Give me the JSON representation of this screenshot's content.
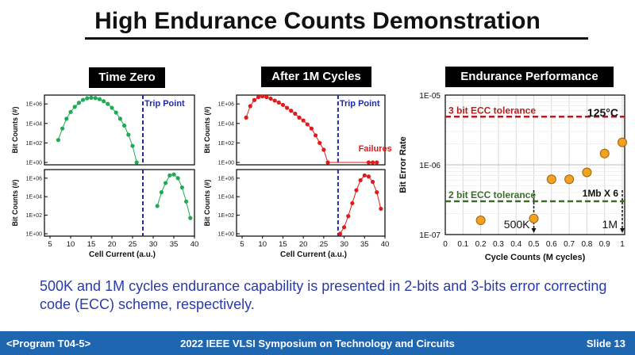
{
  "slide": {
    "title": "High Endurance Counts Demonstration",
    "caption": "500K and 1M cycles endurance capability is presented in 2-bits and 3-bits error correcting code (ECC) scheme, respectively.",
    "footer": {
      "program": "<Program T04-5>",
      "conference": "2022 IEEE VLSI Symposium on Technology and Circuits",
      "slide_number": "Slide 13"
    }
  },
  "colors": {
    "green": "#1faa55",
    "red": "#e01b1b",
    "orange": "#f2a21e",
    "navy": "#1f2ab0",
    "ecc3": "#b21e1e",
    "ecc2": "#3e6b2a",
    "footer": "#1f66b0",
    "caption": "#2a3aa8"
  },
  "chart_data": [
    {
      "type": "line",
      "title": "Time Zero",
      "subplot": "top",
      "xlabel": "",
      "ylabel": "Bit Counts (#)",
      "xlim": [
        5,
        40
      ],
      "yscale": "log",
      "y_tick_labels": [
        "1E+00",
        "1E+02",
        "1E+04",
        "1E+06"
      ],
      "annotations": [
        "Trip Point"
      ],
      "trip_point_x": 27.5,
      "series": [
        {
          "name": "Time Zero - ON distribution",
          "x": [
            7,
            8,
            9,
            10,
            11,
            12,
            13,
            14,
            15,
            16,
            17,
            18,
            19,
            20,
            21,
            22,
            23,
            24,
            25,
            26
          ],
          "y": [
            200,
            3000,
            30000,
            150000,
            500000,
            1300000,
            2600000,
            3800000,
            4300000,
            4000000,
            3100000,
            1900000,
            1000000,
            400000,
            130000,
            30000,
            6000,
            700,
            50,
            1
          ]
        }
      ]
    },
    {
      "type": "line",
      "title": "Time Zero",
      "subplot": "bottom",
      "xlabel": "Cell Current (a.u.)",
      "ylabel": "Bit Counts (#)",
      "xlim": [
        5,
        40
      ],
      "x_tick_labels": [
        "5",
        "10",
        "15",
        "20",
        "25",
        "30",
        "35",
        "40"
      ],
      "yscale": "log",
      "y_tick_labels": [
        "1E+00",
        "1E+02",
        "1E+04",
        "1E+06"
      ],
      "trip_point_x": 27.5,
      "series": [
        {
          "name": "Time Zero - OFF distribution",
          "x": [
            31,
            32,
            33,
            34,
            35,
            36,
            37,
            38,
            39
          ],
          "y": [
            1000,
            30000,
            300000,
            2000000,
            2500000,
            1000000,
            100000,
            3000,
            50
          ]
        }
      ]
    },
    {
      "type": "line",
      "title": "After 1M Cycles",
      "subplot": "top",
      "xlabel": "",
      "ylabel": "Bit Counts (#)",
      "xlim": [
        5,
        40
      ],
      "yscale": "log",
      "y_tick_labels": [
        "1E+00",
        "1E+02",
        "1E+04",
        "1E+06"
      ],
      "annotations": [
        "Trip Point",
        "Failures"
      ],
      "trip_point_x": 28.5,
      "series": [
        {
          "name": "After 1M - ON distribution",
          "x": [
            6,
            7,
            8,
            9,
            10,
            11,
            12,
            13,
            14,
            15,
            16,
            17,
            18,
            19,
            20,
            21,
            22,
            23,
            24,
            25,
            26,
            36,
            37,
            38
          ],
          "y": [
            40000,
            600000,
            2500000,
            5000000,
            6000000,
            5000000,
            3500000,
            2200000,
            1400000,
            800000,
            400000,
            200000,
            100000,
            40000,
            20000,
            8000,
            3000,
            600,
            100,
            20,
            1,
            1,
            1,
            1
          ]
        }
      ]
    },
    {
      "type": "line",
      "title": "After 1M Cycles",
      "subplot": "bottom",
      "xlabel": "Cell Current (a.u.)",
      "ylabel": "Bit Counts (#)",
      "xlim": [
        5,
        40
      ],
      "x_tick_labels": [
        "5",
        "10",
        "15",
        "20",
        "25",
        "30",
        "35",
        "40"
      ],
      "yscale": "log",
      "y_tick_labels": [
        "1E+00",
        "1E+02",
        "1E+04",
        "1E+06"
      ],
      "trip_point_x": 28.5,
      "series": [
        {
          "name": "After 1M - OFF distribution",
          "x": [
            29,
            30,
            31,
            32,
            33,
            34,
            35,
            36,
            37,
            38,
            39
          ],
          "y": [
            1,
            5,
            80,
            2000,
            50000,
            600000,
            2000000,
            1500000,
            400000,
            30000,
            500
          ]
        }
      ]
    },
    {
      "type": "scatter",
      "title": "Endurance Performance",
      "xlabel": "Cycle Counts (M cycles)",
      "ylabel": "Bit Error Rate",
      "xlim": [
        0,
        1
      ],
      "ylim": [
        1e-07,
        1e-05
      ],
      "yscale": "log",
      "x_tick_labels": [
        "0",
        "0.1",
        "0.2",
        "0.3",
        "0.4",
        "0.5",
        "0.6",
        "0.7",
        "0.8",
        "0.9",
        "1"
      ],
      "y_tick_labels": [
        "1E-07",
        "1E-06",
        "1E-05"
      ],
      "x": [
        0.2,
        0.5,
        0.6,
        0.7,
        0.8,
        0.9,
        1.0
      ],
      "y": [
        1.6e-07,
        1.7e-07,
        6.2e-07,
        6.2e-07,
        7.8e-07,
        1.45e-06,
        2.1e-06
      ],
      "thresholds": [
        {
          "label": "3 bit ECC tolerance",
          "value": 4.9e-06
        },
        {
          "label": "2 bit ECC tolerance",
          "value": 3e-07
        }
      ],
      "annotations": [
        "125°C",
        "1Mb X 6",
        "500K",
        "1M"
      ]
    }
  ]
}
